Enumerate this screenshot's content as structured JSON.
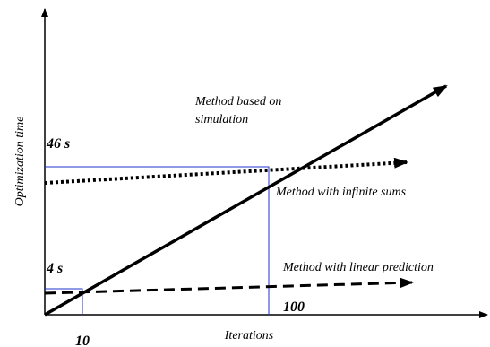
{
  "axes": {
    "x_label": "Iterations",
    "y_label": "Optimization time"
  },
  "markers": {
    "y_high": "46 s",
    "y_low": "4 s",
    "x_low": "10",
    "x_high": "100"
  },
  "curves": [
    {
      "lines": [
        "Method based on",
        "simulation"
      ]
    },
    {
      "lines": [
        "Method with infinite sums"
      ]
    },
    {
      "lines": [
        "Method with linear prediction"
      ]
    }
  ]
}
